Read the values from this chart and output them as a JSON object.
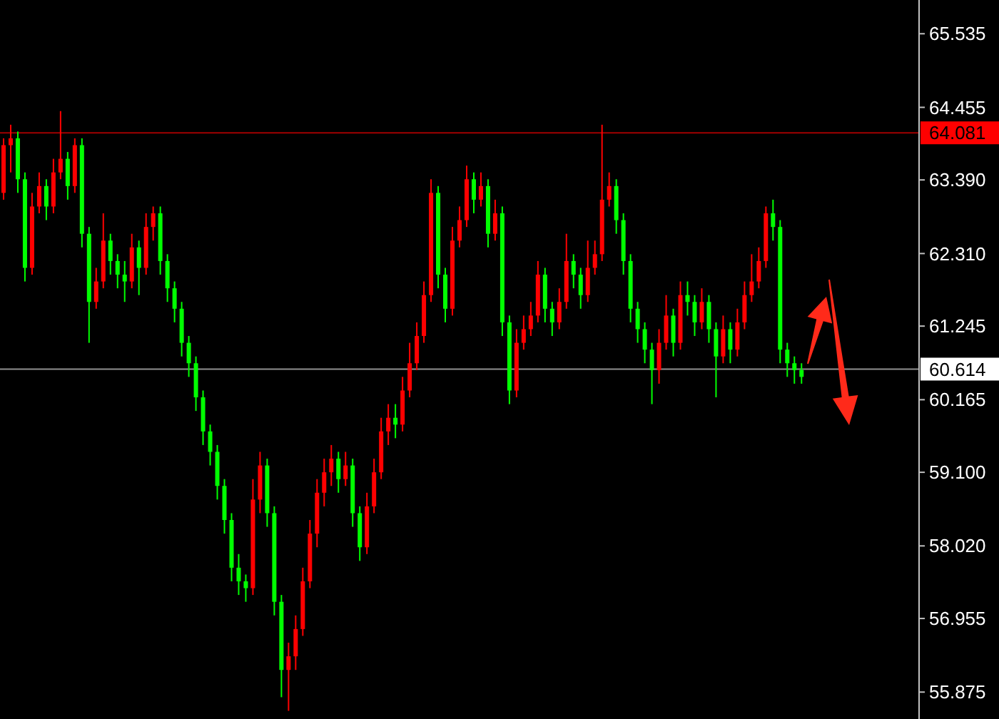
{
  "chart_data": {
    "type": "candlestick",
    "categories": [
      null,
      null,
      null,
      null,
      null,
      null,
      null,
      null,
      null,
      null,
      null,
      null,
      null,
      null,
      null,
      null,
      null,
      null,
      null,
      null,
      null,
      null,
      null,
      null,
      null,
      null,
      null,
      null,
      null,
      null,
      null,
      null,
      null,
      null,
      null,
      null,
      null,
      null,
      null,
      null,
      null,
      null,
      null,
      null,
      null,
      null,
      null,
      null,
      null,
      null,
      null,
      null,
      null,
      null,
      null,
      null,
      null,
      null,
      null,
      null,
      null,
      null,
      null,
      null,
      null,
      null,
      null,
      null,
      null,
      null,
      null,
      null,
      null,
      null,
      null,
      null,
      null,
      null,
      null,
      null,
      null,
      null,
      null,
      null,
      null,
      null,
      null,
      null,
      null,
      null,
      null,
      null,
      null,
      null,
      null,
      null,
      null,
      null,
      null,
      null,
      null,
      null,
      null,
      null,
      null,
      null,
      null,
      null,
      null,
      null,
      null,
      null,
      null,
      null,
      null,
      null,
      null,
      null,
      null,
      null,
      null,
      null,
      null,
      null,
      null,
      null,
      null,
      null,
      null
    ],
    "ohlc": [
      [
        63.2,
        64.0,
        63.1,
        63.9
      ],
      [
        63.9,
        64.2,
        63.5,
        64.0
      ],
      [
        64.0,
        64.1,
        63.2,
        63.4
      ],
      [
        63.4,
        63.5,
        61.9,
        62.1
      ],
      [
        62.1,
        63.2,
        62.0,
        63.0
      ],
      [
        63.0,
        63.5,
        62.9,
        63.3
      ],
      [
        63.3,
        63.4,
        62.8,
        63.0
      ],
      [
        63.0,
        63.7,
        62.9,
        63.5
      ],
      [
        63.5,
        64.4,
        63.4,
        63.7
      ],
      [
        63.7,
        63.8,
        63.1,
        63.3
      ],
      [
        63.3,
        64.0,
        63.2,
        63.9
      ],
      [
        63.9,
        64.0,
        62.4,
        62.6
      ],
      [
        62.6,
        62.7,
        61.0,
        61.6
      ],
      [
        61.6,
        62.1,
        61.5,
        61.9
      ],
      [
        61.9,
        62.9,
        61.8,
        62.5
      ],
      [
        62.5,
        62.6,
        62.0,
        62.2
      ],
      [
        62.2,
        62.3,
        61.8,
        62.0
      ],
      [
        62.0,
        62.2,
        61.6,
        61.9
      ],
      [
        61.9,
        62.6,
        61.8,
        62.4
      ],
      [
        62.4,
        62.5,
        61.7,
        62.1
      ],
      [
        62.1,
        62.9,
        62.0,
        62.7
      ],
      [
        62.7,
        63.0,
        62.5,
        62.9
      ],
      [
        62.9,
        63.0,
        62.0,
        62.2
      ],
      [
        62.2,
        62.3,
        61.6,
        61.8
      ],
      [
        61.8,
        61.9,
        61.3,
        61.5
      ],
      [
        61.5,
        61.6,
        60.8,
        61.0
      ],
      [
        61.0,
        61.1,
        60.5,
        60.7
      ],
      [
        60.7,
        60.8,
        60.0,
        60.2
      ],
      [
        60.2,
        60.3,
        59.5,
        59.7
      ],
      [
        59.7,
        59.8,
        59.2,
        59.4
      ],
      [
        59.4,
        59.5,
        58.7,
        58.9
      ],
      [
        58.9,
        59.0,
        58.2,
        58.4
      ],
      [
        58.4,
        58.5,
        57.5,
        57.7
      ],
      [
        57.7,
        57.9,
        57.3,
        57.5
      ],
      [
        57.5,
        57.6,
        57.2,
        57.4
      ],
      [
        57.4,
        59.0,
        57.3,
        58.7
      ],
      [
        58.7,
        59.4,
        58.5,
        59.2
      ],
      [
        59.2,
        59.3,
        58.3,
        58.5
      ],
      [
        58.5,
        58.6,
        57.0,
        57.2
      ],
      [
        57.2,
        57.3,
        55.8,
        56.2
      ],
      [
        56.2,
        56.6,
        55.6,
        56.4
      ],
      [
        56.4,
        57.0,
        56.2,
        56.8
      ],
      [
        56.8,
        57.7,
        56.7,
        57.5
      ],
      [
        57.5,
        58.4,
        57.4,
        58.2
      ],
      [
        58.2,
        59.0,
        58.0,
        58.8
      ],
      [
        58.8,
        59.3,
        58.6,
        59.1
      ],
      [
        59.1,
        59.5,
        58.9,
        59.3
      ],
      [
        59.3,
        59.4,
        58.8,
        59.0
      ],
      [
        59.0,
        59.4,
        58.9,
        59.2
      ],
      [
        59.2,
        59.3,
        58.3,
        58.5
      ],
      [
        58.5,
        58.6,
        57.8,
        58.0
      ],
      [
        58.0,
        58.8,
        57.9,
        58.6
      ],
      [
        58.6,
        59.3,
        58.5,
        59.1
      ],
      [
        59.1,
        59.9,
        59.0,
        59.7
      ],
      [
        59.7,
        60.1,
        59.5,
        59.9
      ],
      [
        59.9,
        60.1,
        59.6,
        59.8
      ],
      [
        59.8,
        60.5,
        59.7,
        60.3
      ],
      [
        60.3,
        61.0,
        60.2,
        60.7
      ],
      [
        60.7,
        61.3,
        60.6,
        61.1
      ],
      [
        61.1,
        61.9,
        61.0,
        61.7
      ],
      [
        61.7,
        63.4,
        61.6,
        63.2
      ],
      [
        63.2,
        63.3,
        61.8,
        62.0
      ],
      [
        62.0,
        62.1,
        61.3,
        61.5
      ],
      [
        61.5,
        62.7,
        61.4,
        62.5
      ],
      [
        62.5,
        63.0,
        62.4,
        62.8
      ],
      [
        62.8,
        63.6,
        62.7,
        63.4
      ],
      [
        63.4,
        63.5,
        62.9,
        63.1
      ],
      [
        63.1,
        63.5,
        63.0,
        63.3
      ],
      [
        63.3,
        63.4,
        62.4,
        62.6
      ],
      [
        62.6,
        63.1,
        62.5,
        62.9
      ],
      [
        62.9,
        63.0,
        61.1,
        61.3
      ],
      [
        61.3,
        61.4,
        60.1,
        60.3
      ],
      [
        60.3,
        61.2,
        60.2,
        61.0
      ],
      [
        61.0,
        61.4,
        60.9,
        61.2
      ],
      [
        61.2,
        61.6,
        61.1,
        61.4
      ],
      [
        61.4,
        62.2,
        61.3,
        62.0
      ],
      [
        62.0,
        62.1,
        61.3,
        61.5
      ],
      [
        61.5,
        61.6,
        61.1,
        61.3
      ],
      [
        61.3,
        61.8,
        61.2,
        61.6
      ],
      [
        61.6,
        62.6,
        61.5,
        62.2
      ],
      [
        62.2,
        62.3,
        61.8,
        62.0
      ],
      [
        62.0,
        62.1,
        61.5,
        61.7
      ],
      [
        61.7,
        62.5,
        61.6,
        62.1
      ],
      [
        62.1,
        62.5,
        62.0,
        62.3
      ],
      [
        62.3,
        64.2,
        62.2,
        63.1
      ],
      [
        63.1,
        63.5,
        63.0,
        63.3
      ],
      [
        63.3,
        63.4,
        62.6,
        62.8
      ],
      [
        62.8,
        62.9,
        62.0,
        62.2
      ],
      [
        62.2,
        62.3,
        61.3,
        61.5
      ],
      [
        61.5,
        61.6,
        61.0,
        61.2
      ],
      [
        61.2,
        61.3,
        60.7,
        60.9
      ],
      [
        60.9,
        61.0,
        60.1,
        60.6
      ],
      [
        60.6,
        61.2,
        60.4,
        61.0
      ],
      [
        61.0,
        61.7,
        60.9,
        61.4
      ],
      [
        61.4,
        61.5,
        60.8,
        61.0
      ],
      [
        61.0,
        61.9,
        60.9,
        61.7
      ],
      [
        61.7,
        61.9,
        61.4,
        61.6
      ],
      [
        61.6,
        61.7,
        61.1,
        61.3
      ],
      [
        61.3,
        61.8,
        61.2,
        61.6
      ],
      [
        61.6,
        61.7,
        61.0,
        61.2
      ],
      [
        61.2,
        61.3,
        60.2,
        60.8
      ],
      [
        60.8,
        61.4,
        60.7,
        61.2
      ],
      [
        61.2,
        61.3,
        60.7,
        60.9
      ],
      [
        60.9,
        61.5,
        60.8,
        61.3
      ],
      [
        61.3,
        61.9,
        61.2,
        61.7
      ],
      [
        61.7,
        62.3,
        61.6,
        61.9
      ],
      [
        61.9,
        62.4,
        61.8,
        62.2
      ],
      [
        62.2,
        63.0,
        62.1,
        62.9
      ],
      [
        62.9,
        63.1,
        62.5,
        62.7
      ],
      [
        62.7,
        62.8,
        60.7,
        60.9
      ],
      [
        60.9,
        61.0,
        60.5,
        60.7
      ],
      [
        60.7,
        60.8,
        60.4,
        60.6
      ],
      [
        60.6,
        60.7,
        60.4,
        60.5
      ],
      null,
      null,
      null,
      null,
      null,
      null,
      null,
      null,
      null,
      null,
      null,
      null,
      null,
      null,
      null,
      null
    ],
    "colors": [
      "#ff0000",
      "#ff0000",
      "#00ff00",
      "#00ff00",
      "#ff0000",
      "#ff0000",
      "#00ff00",
      "#ff0000",
      "#ff0000",
      "#00ff00",
      "#ff0000",
      "#00ff00",
      "#00ff00",
      "#ff0000",
      "#ff0000",
      "#00ff00",
      "#00ff00",
      "#00ff00",
      "#ff0000",
      "#00ff00",
      "#ff0000",
      "#ff0000",
      "#00ff00",
      "#00ff00",
      "#00ff00",
      "#00ff00",
      "#00ff00",
      "#00ff00",
      "#00ff00",
      "#00ff00",
      "#00ff00",
      "#00ff00",
      "#00ff00",
      "#00ff00",
      "#00ff00",
      "#ff0000",
      "#ff0000",
      "#00ff00",
      "#00ff00",
      "#00ff00",
      "#ff0000",
      "#ff0000",
      "#ff0000",
      "#ff0000",
      "#ff0000",
      "#ff0000",
      "#ff0000",
      "#00ff00",
      "#ff0000",
      "#00ff00",
      "#00ff00",
      "#ff0000",
      "#ff0000",
      "#ff0000",
      "#ff0000",
      "#00ff00",
      "#ff0000",
      "#ff0000",
      "#ff0000",
      "#ff0000",
      "#ff0000",
      "#00ff00",
      "#00ff00",
      "#ff0000",
      "#ff0000",
      "#ff0000",
      "#00ff00",
      "#ff0000",
      "#00ff00",
      "#ff0000",
      "#00ff00",
      "#00ff00",
      "#ff0000",
      "#ff0000",
      "#ff0000",
      "#ff0000",
      "#00ff00",
      "#00ff00",
      "#ff0000",
      "#ff0000",
      "#00ff00",
      "#00ff00",
      "#ff0000",
      "#ff0000",
      "#ff0000",
      "#ff0000",
      "#00ff00",
      "#00ff00",
      "#00ff00",
      "#00ff00",
      "#00ff00",
      "#00ff00",
      "#ff0000",
      "#ff0000",
      "#00ff00",
      "#ff0000",
      "#00ff00",
      "#00ff00",
      "#ff0000",
      "#00ff00",
      "#00ff00",
      "#ff0000",
      "#00ff00",
      "#ff0000",
      "#ff0000",
      "#ff0000",
      "#ff0000",
      "#ff0000",
      "#00ff00",
      "#00ff00",
      "#00ff00",
      "#00ff00",
      "#00ff00",
      null,
      null,
      null,
      null,
      null,
      null,
      null,
      null,
      null,
      null,
      null,
      null,
      null,
      null,
      null,
      null
    ],
    "ylim": [
      55.48,
      66.03
    ],
    "yticks": [
      {
        "value": 65.535,
        "label": "65.535"
      },
      {
        "value": 64.455,
        "label": "64.455"
      },
      {
        "value": 63.39,
        "label": "63.390"
      },
      {
        "value": 62.31,
        "label": "62.310"
      },
      {
        "value": 61.245,
        "label": "61.245"
      },
      {
        "value": 60.165,
        "label": "60.165"
      },
      {
        "value": 59.1,
        "label": "59.100"
      },
      {
        "value": 58.02,
        "label": "58.020"
      },
      {
        "value": 56.955,
        "label": "56.955"
      },
      {
        "value": 55.875,
        "label": "55.875"
      }
    ],
    "ref_lines": [
      {
        "axis": "y",
        "value": 64.081,
        "label": "64.081",
        "color": "#a00000"
      },
      {
        "axis": "y",
        "value": 60.614,
        "label": "60.614",
        "color": "#909090"
      }
    ],
    "grid": false
  }
}
